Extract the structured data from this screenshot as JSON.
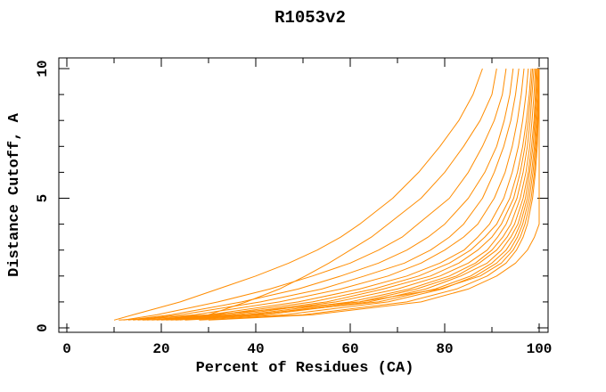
{
  "chart_data": {
    "type": "line",
    "title": "R1053v2",
    "xlabel": "Percent of Residues (CA)",
    "ylabel": "Distance Cutoff, A",
    "xlim": [
      0,
      100
    ],
    "ylim": [
      0,
      10
    ],
    "grid": false,
    "legend": false,
    "colors": {
      "line": "#FF8C00",
      "axis": "#000000",
      "text": "#000000",
      "background": "#FFFFFF"
    },
    "x_major_ticks": [
      {
        "value": 0,
        "label": "0"
      },
      {
        "value": 20,
        "label": "20"
      },
      {
        "value": 40,
        "label": "40"
      },
      {
        "value": 60,
        "label": "60"
      },
      {
        "value": 80,
        "label": "80"
      },
      {
        "value": 100,
        "label": "100"
      }
    ],
    "x_minor_ticks": [
      10,
      30,
      50,
      70,
      90
    ],
    "y_major_ticks": [
      {
        "value": 0,
        "label": "0"
      },
      {
        "value": 5,
        "label": "5"
      },
      {
        "value": 10,
        "label": "10"
      }
    ],
    "y_minor_ticks": [
      1,
      2,
      3,
      4,
      6,
      7,
      8,
      9
    ],
    "cutoffs": [
      0.3,
      0.5,
      1,
      1.5,
      2,
      2.5,
      3,
      3.5,
      4,
      5,
      6,
      7,
      8,
      9,
      10
    ],
    "series": [
      {
        "values": [
          10,
          14,
          24,
          32,
          40,
          47,
          53,
          58,
          62,
          69,
          74.5,
          79,
          83,
          86,
          88
        ]
      },
      {
        "values": [
          24,
          30,
          38,
          45,
          50.5,
          55.5,
          60,
          64.5,
          68,
          75,
          80,
          84,
          87.5,
          90,
          91
        ]
      },
      {
        "values": [
          12,
          19,
          32,
          43,
          52,
          60,
          66,
          71,
          74.3,
          81,
          85,
          88,
          90.5,
          92.2,
          93
        ]
      },
      {
        "values": [
          13,
          22,
          37,
          49,
          58,
          66,
          72,
          76.5,
          80,
          85,
          88.5,
          91,
          92.6,
          93.8,
          94.5
        ]
      },
      {
        "values": [
          14,
          24,
          41,
          54,
          63,
          71.5,
          77,
          81,
          84,
          88,
          90.5,
          92.5,
          94,
          95,
          95.7
        ]
      },
      {
        "values": [
          15,
          27,
          45,
          58,
          68,
          75,
          80,
          84,
          87,
          90.5,
          92.8,
          94.3,
          95.4,
          96.2,
          96.8
        ]
      },
      {
        "values": [
          17,
          30,
          49,
          62,
          72,
          79,
          84.1,
          87,
          89.5,
          92.5,
          94.3,
          95.6,
          96.5,
          97.2,
          97.7
        ]
      },
      {
        "values": [
          18,
          32,
          52,
          65,
          74.5,
          81,
          85.5,
          88.5,
          91,
          93.8,
          95.4,
          96.5,
          97.3,
          97.9,
          98.3
        ]
      },
      {
        "values": [
          19,
          34,
          55,
          67,
          77,
          83,
          87,
          90,
          92,
          94.6,
          96,
          97,
          97.7,
          98.2,
          98.6
        ]
      },
      {
        "values": [
          20,
          36,
          57,
          70,
          79,
          85,
          89,
          91.2,
          93,
          95.3,
          96.6,
          97.5,
          98.1,
          98.5,
          98.9
        ]
      },
      {
        "values": [
          21,
          38,
          60,
          72.5,
          81,
          86.5,
          90,
          92.3,
          94,
          96,
          97.2,
          98,
          98.5,
          98.9,
          99.2
        ]
      },
      {
        "values": [
          22,
          40,
          62,
          74,
          82.5,
          87.3,
          91,
          93.2,
          94.8,
          96.6,
          97.7,
          98.4,
          98.9,
          99.2,
          99.4
        ]
      },
      {
        "values": [
          23,
          42,
          64,
          76,
          83.4,
          89,
          92,
          94,
          95.5,
          97.1,
          98,
          98.7,
          99.1,
          99.4,
          99.6
        ]
      },
      {
        "values": [
          16,
          39,
          66,
          78,
          85.5,
          90,
          93,
          94.8,
          96,
          97.5,
          98.4,
          99,
          99.3,
          99.6,
          99.8
        ]
      },
      {
        "values": [
          25,
          46,
          68,
          79.5,
          86.5,
          91,
          93.8,
          95.4,
          96.5,
          97.9,
          98.7,
          99.2,
          99.5,
          99.8,
          99.9
        ]
      },
      {
        "values": [
          11,
          30,
          62,
          79,
          87.5,
          92,
          94.5,
          96,
          97,
          98.3,
          99,
          99.4,
          99.7,
          99.9,
          100
        ]
      },
      {
        "values": [
          28,
          50,
          72,
          82.5,
          89,
          93,
          95.2,
          96.6,
          97.5,
          98.6,
          99.2,
          99.6,
          99.8,
          100,
          100
        ]
      },
      {
        "values": [
          30,
          52,
          75,
          85,
          91,
          95,
          97.5,
          99,
          100,
          100,
          100,
          100,
          100,
          100,
          100
        ]
      }
    ]
  }
}
